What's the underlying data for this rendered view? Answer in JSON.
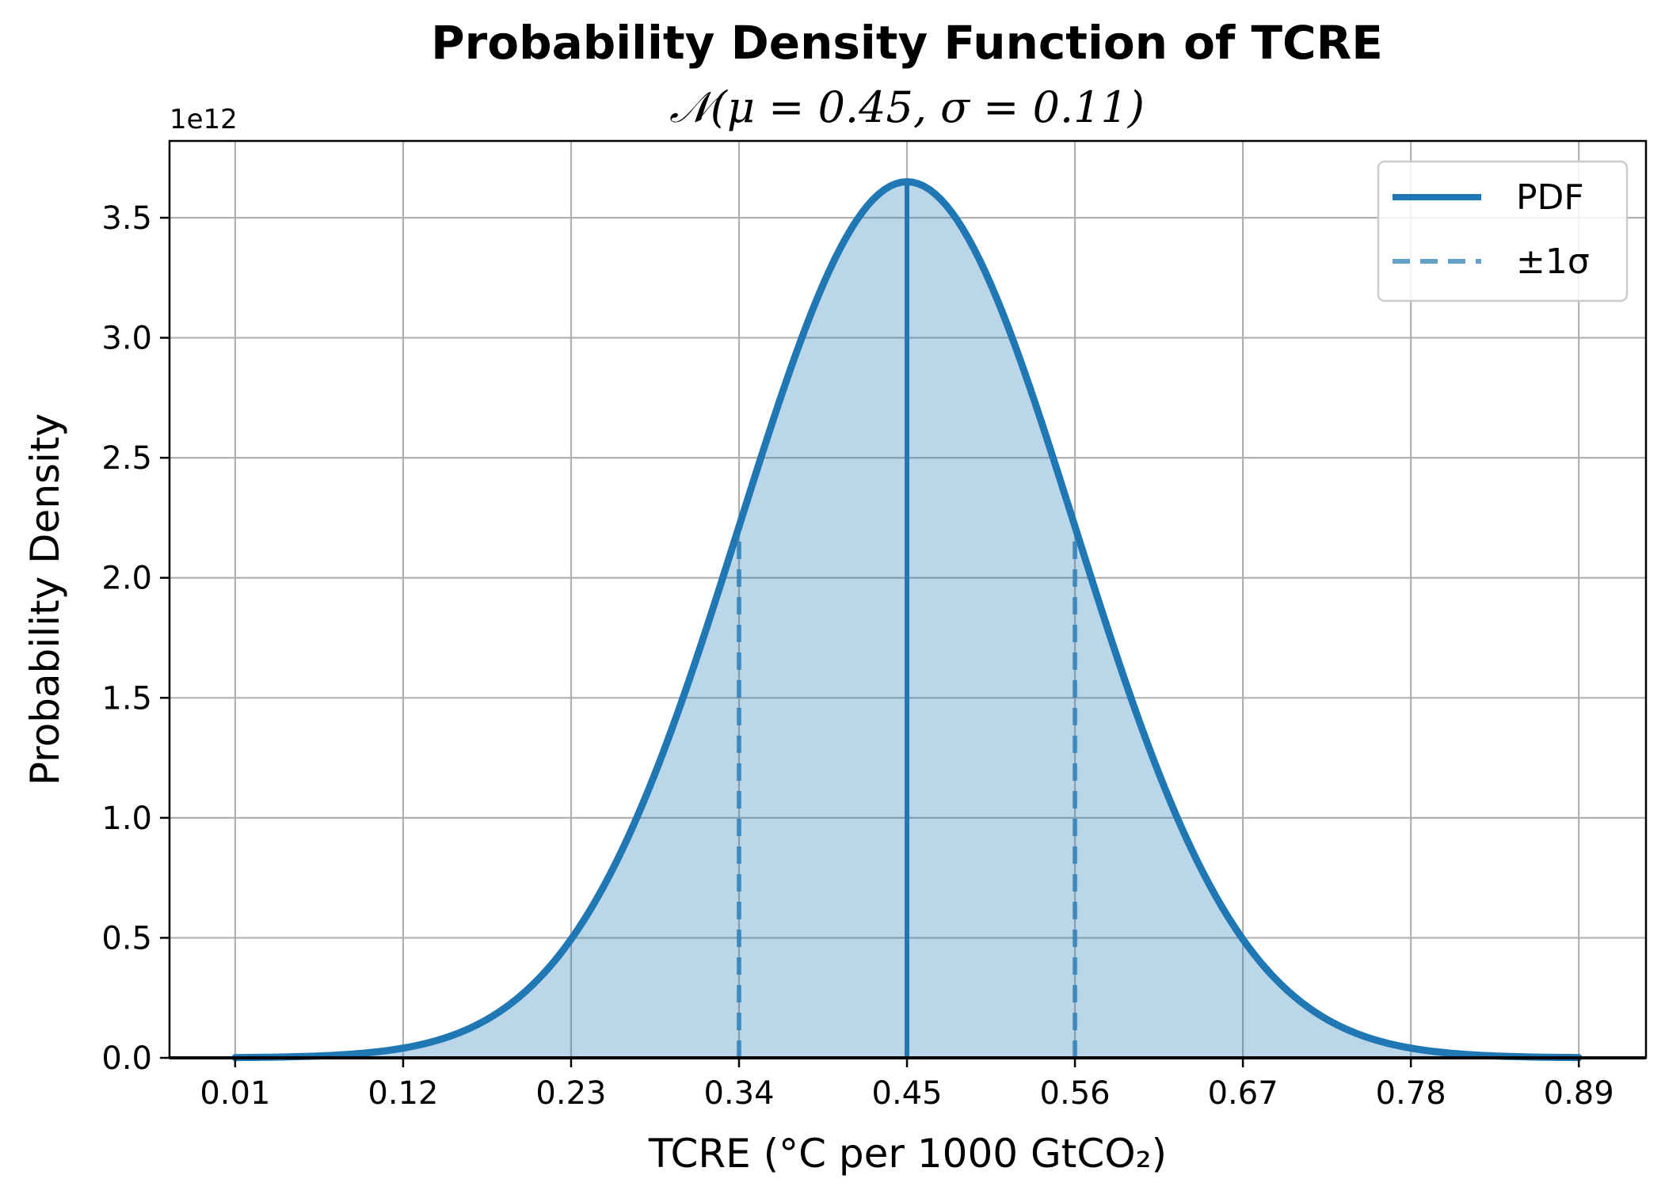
{
  "chart_data": {
    "type": "area",
    "title": "Probability Density Function of TCRE",
    "subtitle": "𝒩(μ = 0.45, σ = 0.11)",
    "xlabel": "TCRE (°C per 1000 GtCO₂)",
    "ylabel": "Probability Density",
    "y_offset_label": "1e12",
    "x_ticks": [
      "0.01",
      "0.12",
      "0.23",
      "0.34",
      "0.45",
      "0.56",
      "0.67",
      "0.78",
      "0.89"
    ],
    "y_ticks": [
      "0.0",
      "0.5",
      "1.0",
      "1.5",
      "2.0",
      "2.5",
      "3.0",
      "3.5"
    ],
    "xlim": [
      -0.033,
      0.934
    ],
    "ylim": [
      0,
      3.82
    ],
    "y_scale": 1000000000000.0,
    "grid": true,
    "legend_position": "top-right",
    "series": [
      {
        "name": "PDF",
        "style": "solid",
        "color": "#1f77b4",
        "x": [
          0.01,
          0.06,
          0.12,
          0.17,
          0.2,
          0.23,
          0.26,
          0.29,
          0.32,
          0.34,
          0.37,
          0.4,
          0.42,
          0.45,
          0.48,
          0.5,
          0.53,
          0.56,
          0.58,
          0.61,
          0.64,
          0.67,
          0.7,
          0.73,
          0.78,
          0.84,
          0.89
        ],
        "y": [
          0.001,
          0.013,
          0.041,
          0.143,
          0.275,
          0.493,
          0.816,
          1.244,
          1.752,
          2.16,
          2.869,
          3.311,
          3.509,
          3.65,
          3.509,
          3.311,
          2.869,
          2.16,
          1.752,
          1.244,
          0.816,
          0.493,
          0.275,
          0.143,
          0.041,
          0.013,
          0.001
        ]
      },
      {
        "name": "±1σ",
        "style": "dashed",
        "color": "#1f77b4",
        "x_positions": [
          0.34,
          0.56
        ],
        "y_top": 2.16
      }
    ],
    "mean_line": {
      "x": 0.45,
      "y_top": 3.65,
      "color": "#1f77b4"
    },
    "fill_color": "#1f77b4",
    "fill_opacity": 0.3
  }
}
